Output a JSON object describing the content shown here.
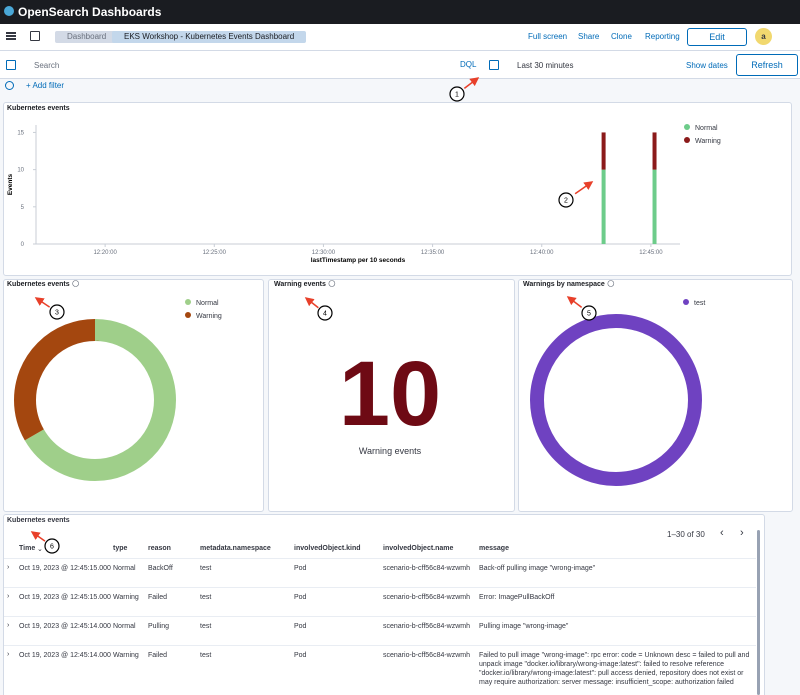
{
  "header": {
    "brand": "OpenSearch Dashboards"
  },
  "nav": {
    "breadcrumbs": [
      "Dashboard",
      "EKS Workshop - Kubernetes Events Dashboard"
    ],
    "actions": [
      "Full screen",
      "Share",
      "Clone",
      "Reporting"
    ],
    "edit": "Edit",
    "avatar": "a"
  },
  "query": {
    "placeholder": "Search",
    "language": "DQL",
    "time_range": "Last 30 minutes",
    "show_dates": "Show dates",
    "refresh": "Refresh",
    "add_filter": "+ Add filter"
  },
  "annotations": [
    "1",
    "2",
    "3",
    "4",
    "5",
    "6"
  ],
  "chart_data": [
    {
      "type": "bar",
      "title": "Kubernetes events",
      "x_label": "lastTimestamp per 10 seconds",
      "y_label": "Events",
      "stacked": true,
      "x": [
        "12:42:50",
        "12:45:10"
      ],
      "xlim": [
        "12:16:50",
        "12:46:20"
      ],
      "xticks": [
        "12:20:00",
        "12:25:00",
        "12:30:00",
        "12:35:00",
        "12:40:00",
        "12:45:00"
      ],
      "ylim": [
        0,
        16
      ],
      "yticks": [
        0,
        5,
        10,
        15
      ],
      "series": [
        {
          "name": "Normal",
          "color": "#6dcc8a",
          "values": [
            10,
            10
          ]
        },
        {
          "name": "Warning",
          "color": "#8b1a1a",
          "values": [
            5,
            5
          ]
        }
      ]
    },
    {
      "type": "pie",
      "donut": true,
      "title": "Kubernetes events",
      "categories": [
        "Normal",
        "Warning"
      ],
      "values": [
        20,
        10
      ],
      "colors": [
        "#9fcf8a",
        "#a4470f"
      ]
    },
    {
      "type": "metric",
      "title": "Warning events",
      "value": 10,
      "label": "Warning events",
      "color": "#6e0a14"
    },
    {
      "type": "pie",
      "donut": true,
      "title": "Warnings by namespace",
      "categories": [
        "test"
      ],
      "values": [
        10
      ],
      "colors": [
        "#6f42c1"
      ]
    }
  ],
  "table": {
    "title": "Kubernetes events",
    "pagination": "1–30 of 30",
    "columns": [
      "Time",
      "type",
      "reason",
      "metadata.namespace",
      "involvedObject.kind",
      "involvedObject.name",
      "message"
    ],
    "rows": [
      [
        "Oct 19, 2023 @ 12:45:15.000",
        "Normal",
        "BackOff",
        "test",
        "Pod",
        "scenario-b-cff56c84-wzwmh",
        "Back-off pulling image \"wrong-image\""
      ],
      [
        "Oct 19, 2023 @ 12:45:15.000",
        "Warning",
        "Failed",
        "test",
        "Pod",
        "scenario-b-cff56c84-wzwmh",
        "Error: ImagePullBackOff"
      ],
      [
        "Oct 19, 2023 @ 12:45:14.000",
        "Normal",
        "Pulling",
        "test",
        "Pod",
        "scenario-b-cff56c84-wzwmh",
        "Pulling image \"wrong-image\""
      ],
      [
        "Oct 19, 2023 @ 12:45:14.000",
        "Warning",
        "Failed",
        "test",
        "Pod",
        "scenario-b-cff56c84-wzwmh",
        "Failed to pull image \"wrong-image\": rpc error: code = Unknown desc = failed to pull and unpack image \"docker.io/library/wrong-image:latest\": failed to resolve reference \"docker.io/library/wrong-image:latest\": pull access denied, repository does not exist or may require authorization: server message: insufficient_scope: authorization failed"
      ]
    ]
  }
}
